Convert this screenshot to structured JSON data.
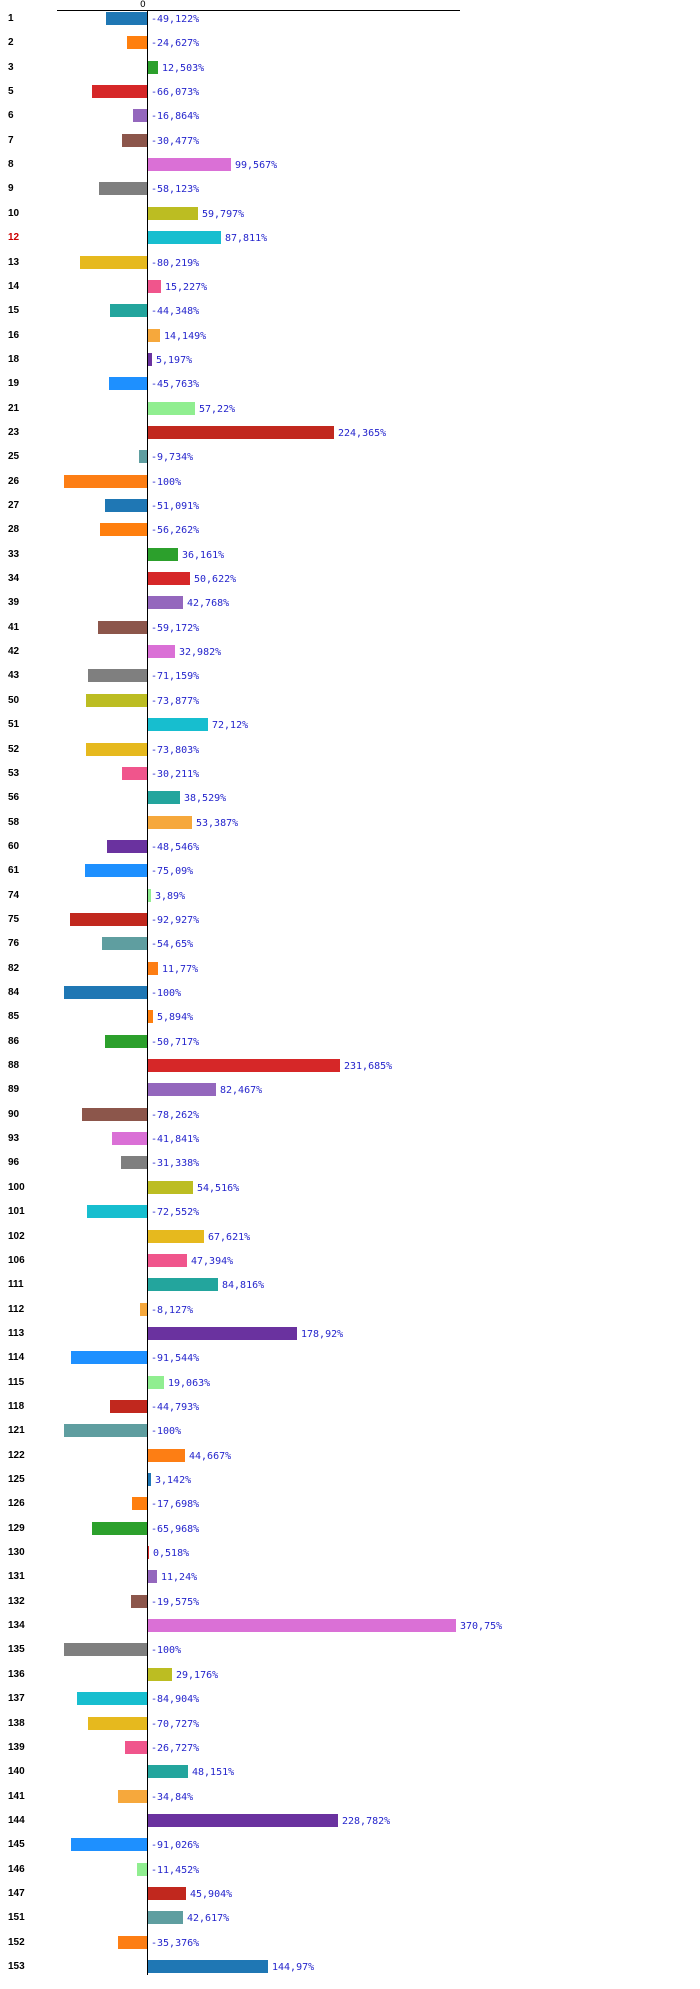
{
  "chart": {
    "zero_tick_label": "0",
    "value_label_color": "#2424CC",
    "axis_color": "#000000",
    "row_label_color": "#000000",
    "highlight_row_label_color": "#CC0000"
  },
  "chart_data": {
    "type": "bar",
    "orientation": "horizontal",
    "unit": "%",
    "decimal_separator": ",",
    "title": "",
    "xlabel": "",
    "ylabel": "",
    "x_axis": {
      "tick_labels": [
        "0"
      ],
      "position": "top",
      "approx_range": [
        -110,
        385
      ]
    },
    "grid": false,
    "legend": false,
    "highlighted_categories": [
      "12"
    ],
    "rows": [
      {
        "label": "1",
        "value": -49.122,
        "display": "-49,122%",
        "color": "#1F77B4"
      },
      {
        "label": "2",
        "value": -24.627,
        "display": "-24,627%",
        "color": "#FF7F0E"
      },
      {
        "label": "3",
        "value": 12.503,
        "display": "12,503%",
        "color": "#2CA02C"
      },
      {
        "label": "5",
        "value": -66.073,
        "display": "-66,073%",
        "color": "#D62728"
      },
      {
        "label": "6",
        "value": -16.864,
        "display": "-16,864%",
        "color": "#9467BD"
      },
      {
        "label": "7",
        "value": -30.477,
        "display": "-30,477%",
        "color": "#8C564B"
      },
      {
        "label": "8",
        "value": 99.567,
        "display": "99,567%",
        "color": "#DA70D6"
      },
      {
        "label": "9",
        "value": -58.123,
        "display": "-58,123%",
        "color": "#7F7F7F"
      },
      {
        "label": "10",
        "value": 59.797,
        "display": "59,797%",
        "color": "#BCBD22"
      },
      {
        "label": "12",
        "value": 87.811,
        "display": "87,811%",
        "color": "#17BECF",
        "label_color": "#CC0000"
      },
      {
        "label": "13",
        "value": -80.219,
        "display": "-80,219%",
        "color": "#E6B91E"
      },
      {
        "label": "14",
        "value": 15.227,
        "display": "15,227%",
        "color": "#F0558C"
      },
      {
        "label": "15",
        "value": -44.348,
        "display": "-44,348%",
        "color": "#23A59D"
      },
      {
        "label": "16",
        "value": 14.149,
        "display": "14,149%",
        "color": "#F6A83C"
      },
      {
        "label": "18",
        "value": 5.197,
        "display": "5,197%",
        "color": "#6A329F"
      },
      {
        "label": "19",
        "value": -45.763,
        "display": "-45,763%",
        "color": "#1E90FF"
      },
      {
        "label": "21",
        "value": 57.22,
        "display": "57,22%",
        "color": "#90EE90"
      },
      {
        "label": "23",
        "value": 224.365,
        "display": "224,365%",
        "color": "#C1281E"
      },
      {
        "label": "25",
        "value": -9.734,
        "display": "-9,734%",
        "color": "#5F9EA0"
      },
      {
        "label": "26",
        "value": -100,
        "display": "-100%",
        "color": "#FD7E14"
      },
      {
        "label": "27",
        "value": -51.091,
        "display": "-51,091%",
        "color": "#1F77B4"
      },
      {
        "label": "28",
        "value": -56.262,
        "display": "-56,262%",
        "color": "#FF7F0E"
      },
      {
        "label": "33",
        "value": 36.161,
        "display": "36,161%",
        "color": "#2CA02C"
      },
      {
        "label": "34",
        "value": 50.622,
        "display": "50,622%",
        "color": "#D62728"
      },
      {
        "label": "39",
        "value": 42.768,
        "display": "42,768%",
        "color": "#9467BD"
      },
      {
        "label": "41",
        "value": -59.172,
        "display": "-59,172%",
        "color": "#8C564B"
      },
      {
        "label": "42",
        "value": 32.982,
        "display": "32,982%",
        "color": "#DA70D6"
      },
      {
        "label": "43",
        "value": -71.159,
        "display": "-71,159%",
        "color": "#7F7F7F"
      },
      {
        "label": "50",
        "value": -73.877,
        "display": "-73,877%",
        "color": "#BCBD22"
      },
      {
        "label": "51",
        "value": 72.12,
        "display": "72,12%",
        "color": "#17BECF"
      },
      {
        "label": "52",
        "value": -73.803,
        "display": "-73,803%",
        "color": "#E6B91E"
      },
      {
        "label": "53",
        "value": -30.211,
        "display": "-30,211%",
        "color": "#F0558C"
      },
      {
        "label": "56",
        "value": 38.529,
        "display": "38,529%",
        "color": "#23A59D"
      },
      {
        "label": "58",
        "value": 53.387,
        "display": "53,387%",
        "color": "#F6A83C"
      },
      {
        "label": "60",
        "value": -48.546,
        "display": "-48,546%",
        "color": "#6A329F"
      },
      {
        "label": "61",
        "value": -75.09,
        "display": "-75,09%",
        "color": "#1E90FF"
      },
      {
        "label": "74",
        "value": 3.89,
        "display": "3,89%",
        "color": "#90EE90"
      },
      {
        "label": "75",
        "value": -92.927,
        "display": "-92,927%",
        "color": "#C1281E"
      },
      {
        "label": "76",
        "value": -54.65,
        "display": "-54,65%",
        "color": "#5F9EA0"
      },
      {
        "label": "82",
        "value": 11.77,
        "display": "11,77%",
        "color": "#FD7E14"
      },
      {
        "label": "84",
        "value": -100,
        "display": "-100%",
        "color": "#1F77B4"
      },
      {
        "label": "85",
        "value": 5.894,
        "display": "5,894%",
        "color": "#FF7F0E"
      },
      {
        "label": "86",
        "value": -50.717,
        "display": "-50,717%",
        "color": "#2CA02C"
      },
      {
        "label": "88",
        "value": 231.685,
        "display": "231,685%",
        "color": "#D62728"
      },
      {
        "label": "89",
        "value": 82.467,
        "display": "82,467%",
        "color": "#9467BD"
      },
      {
        "label": "90",
        "value": -78.262,
        "display": "-78,262%",
        "color": "#8C564B"
      },
      {
        "label": "93",
        "value": -41.841,
        "display": "-41,841%",
        "color": "#DA70D6"
      },
      {
        "label": "96",
        "value": -31.338,
        "display": "-31,338%",
        "color": "#7F7F7F"
      },
      {
        "label": "100",
        "value": 54.516,
        "display": "54,516%",
        "color": "#BCBD22"
      },
      {
        "label": "101",
        "value": -72.552,
        "display": "-72,552%",
        "color": "#17BECF"
      },
      {
        "label": "102",
        "value": 67.621,
        "display": "67,621%",
        "color": "#E6B91E"
      },
      {
        "label": "106",
        "value": 47.394,
        "display": "47,394%",
        "color": "#F0558C"
      },
      {
        "label": "111",
        "value": 84.816,
        "display": "84,816%",
        "color": "#23A59D"
      },
      {
        "label": "112",
        "value": -8.127,
        "display": "-8,127%",
        "color": "#F6A83C"
      },
      {
        "label": "113",
        "value": 178.92,
        "display": "178,92%",
        "color": "#6A329F"
      },
      {
        "label": "114",
        "value": -91.544,
        "display": "-91,544%",
        "color": "#1E90FF"
      },
      {
        "label": "115",
        "value": 19.063,
        "display": "19,063%",
        "color": "#90EE90"
      },
      {
        "label": "118",
        "value": -44.793,
        "display": "-44,793%",
        "color": "#C1281E"
      },
      {
        "label": "121",
        "value": -100,
        "display": "-100%",
        "color": "#5F9EA0"
      },
      {
        "label": "122",
        "value": 44.667,
        "display": "44,667%",
        "color": "#FD7E14"
      },
      {
        "label": "125",
        "value": 3.142,
        "display": "3,142%",
        "color": "#1F77B4"
      },
      {
        "label": "126",
        "value": -17.698,
        "display": "-17,698%",
        "color": "#FF7F0E"
      },
      {
        "label": "129",
        "value": -65.968,
        "display": "-65,968%",
        "color": "#2CA02C"
      },
      {
        "label": "130",
        "value": 0.518,
        "display": "0,518%",
        "color": "#D62728"
      },
      {
        "label": "131",
        "value": 11.24,
        "display": "11,24%",
        "color": "#9467BD"
      },
      {
        "label": "132",
        "value": -19.575,
        "display": "-19,575%",
        "color": "#8C564B"
      },
      {
        "label": "134",
        "value": 370.75,
        "display": "370,75%",
        "color": "#DA70D6"
      },
      {
        "label": "135",
        "value": -100,
        "display": "-100%",
        "color": "#7F7F7F"
      },
      {
        "label": "136",
        "value": 29.176,
        "display": "29,176%",
        "color": "#BCBD22"
      },
      {
        "label": "137",
        "value": -84.904,
        "display": "-84,904%",
        "color": "#17BECF"
      },
      {
        "label": "138",
        "value": -70.727,
        "display": "-70,727%",
        "color": "#E6B91E"
      },
      {
        "label": "139",
        "value": -26.727,
        "display": "-26,727%",
        "color": "#F0558C"
      },
      {
        "label": "140",
        "value": 48.151,
        "display": "48,151%",
        "color": "#23A59D"
      },
      {
        "label": "141",
        "value": -34.84,
        "display": "-34,84%",
        "color": "#F6A83C"
      },
      {
        "label": "144",
        "value": 228.782,
        "display": "228,782%",
        "color": "#6A329F"
      },
      {
        "label": "145",
        "value": -91.026,
        "display": "-91,026%",
        "color": "#1E90FF"
      },
      {
        "label": "146",
        "value": -11.452,
        "display": "-11,452%",
        "color": "#90EE90"
      },
      {
        "label": "147",
        "value": 45.904,
        "display": "45,904%",
        "color": "#C1281E"
      },
      {
        "label": "151",
        "value": 42.617,
        "display": "42,617%",
        "color": "#5F9EA0"
      },
      {
        "label": "152",
        "value": -35.376,
        "display": "-35,376%",
        "color": "#FD7E14"
      },
      {
        "label": "153",
        "value": 144.97,
        "display": "144,97%",
        "color": "#1F77B4"
      }
    ]
  }
}
